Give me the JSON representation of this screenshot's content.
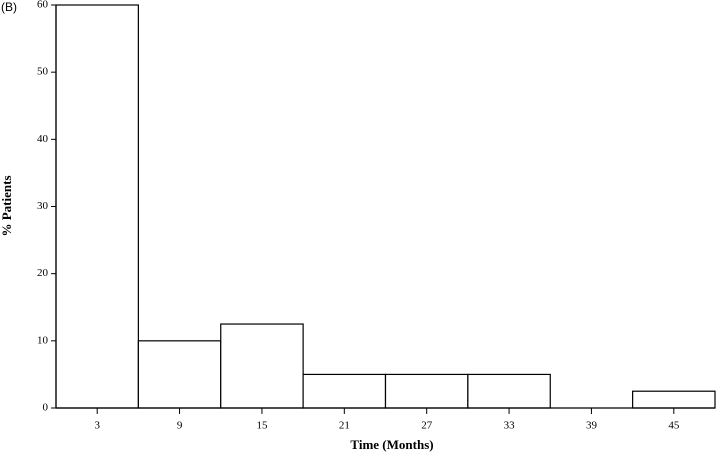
{
  "chart_data": {
    "type": "histogram",
    "panel_label": "(B)",
    "xlabel": "Time (Months)",
    "ylabel": "% Patients",
    "bins": [
      0,
      6,
      12,
      18,
      24,
      30,
      36,
      42,
      48
    ],
    "values": [
      60,
      10,
      12.5,
      5,
      5,
      5,
      0,
      2.5
    ],
    "color": "#ffffff",
    "edgecolor": "#000000",
    "xlim": [
      0,
      48
    ],
    "xticks": [
      3,
      9,
      15,
      21,
      27,
      33,
      39,
      45
    ],
    "ylim": [
      0,
      60
    ],
    "yticks": [
      0,
      10,
      20,
      30,
      40,
      50,
      60
    ],
    "grid": false
  }
}
